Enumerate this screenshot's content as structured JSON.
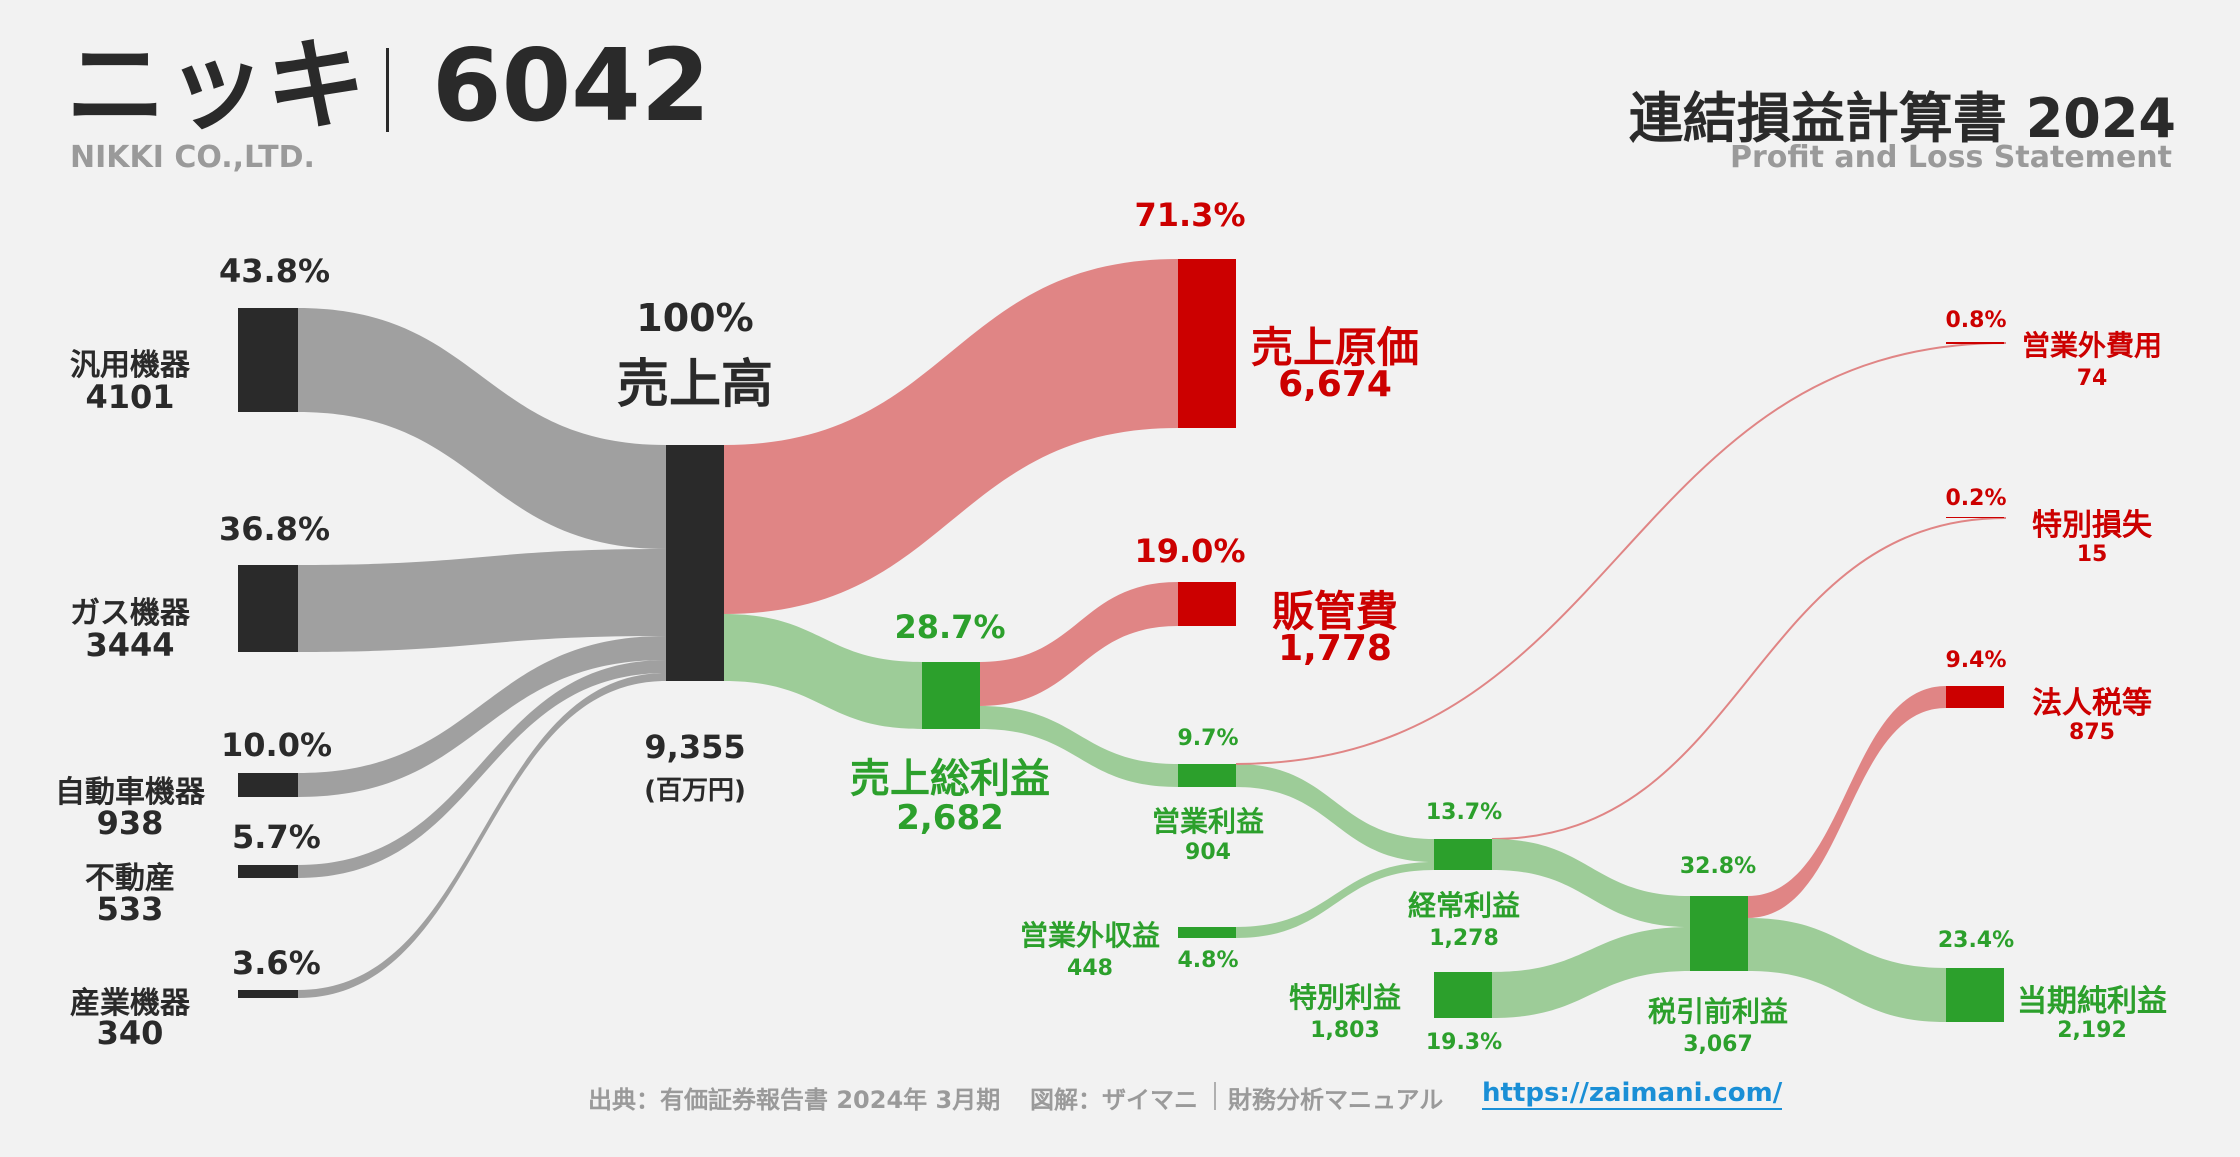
{
  "header": {
    "company": "ニッキ",
    "code": "6042",
    "company_en": "NIKKI CO.,LTD.",
    "statement_title": "連結損益計算書 2024",
    "statement_en": "Profit and Loss Statement"
  },
  "footer": {
    "source": "出典：有価証券報告書 2024年 3月期",
    "credit": "図解：ザイマニ",
    "site_name": "財務分析マニュアル",
    "url": "https://zaimani.com/"
  },
  "colors": {
    "background": "#f2f2f2",
    "dark": "#2a2a2a",
    "revenue_flow": "#a0a0a0",
    "cost_node": "#cc0000",
    "cost_flow": "#e08585",
    "profit_node": "#2ca02c",
    "profit_flow": "#9dcc98",
    "link": "#1a8fd6"
  },
  "chart_data": {
    "type": "sankey",
    "unit": "(百万円)",
    "revenue_segments": [
      {
        "name": "汎用機器",
        "value": 4101,
        "pct": "43.8%"
      },
      {
        "name": "ガス機器",
        "value": 3444,
        "pct": "36.8%"
      },
      {
        "name": "自動車機器",
        "value": 938,
        "pct": "10.0%"
      },
      {
        "name": "不動産",
        "value": 533,
        "pct": "5.7%"
      },
      {
        "name": "産業機器",
        "value": 340,
        "pct": "3.6%"
      }
    ],
    "total_revenue": {
      "name": "売上高",
      "value": "9,355",
      "pct": "100%"
    },
    "cost_of_sales": {
      "name": "売上原価",
      "value": "6,674",
      "pct": "71.3%"
    },
    "gross_profit": {
      "name": "売上総利益",
      "value": "2,682",
      "pct": "28.7%"
    },
    "sga": {
      "name": "販管費",
      "value": "1,778",
      "pct": "19.0%"
    },
    "operating_profit": {
      "name": "営業利益",
      "value": "904",
      "pct": "9.7%"
    },
    "non_operating_income": {
      "name": "営業外収益",
      "value": "448",
      "pct": "4.8%"
    },
    "non_operating_expense": {
      "name": "営業外費用",
      "value": "74",
      "pct": "0.8%"
    },
    "ordinary_profit": {
      "name": "経常利益",
      "value": "1,278",
      "pct": "13.7%"
    },
    "extraordinary_income": {
      "name": "特別利益",
      "value": "1,803",
      "pct": "19.3%"
    },
    "extraordinary_loss": {
      "name": "特別損失",
      "value": "15",
      "pct": "0.2%"
    },
    "pretax_profit": {
      "name": "税引前利益",
      "value": "3,067",
      "pct": "32.8%"
    },
    "income_taxes": {
      "name": "法人税等",
      "value": "875",
      "pct": "9.4%"
    },
    "net_income": {
      "name": "当期純利益",
      "value": "2,192",
      "pct": "23.4%"
    },
    "links": [
      {
        "from": "汎用機器",
        "to": "売上高",
        "value": 4101
      },
      {
        "from": "ガス機器",
        "to": "売上高",
        "value": 3444
      },
      {
        "from": "自動車機器",
        "to": "売上高",
        "value": 938
      },
      {
        "from": "不動産",
        "to": "売上高",
        "value": 533
      },
      {
        "from": "産業機器",
        "to": "売上高",
        "value": 340
      },
      {
        "from": "売上高",
        "to": "売上原価",
        "value": 6674
      },
      {
        "from": "売上高",
        "to": "売上総利益",
        "value": 2682
      },
      {
        "from": "売上総利益",
        "to": "販管費",
        "value": 1778
      },
      {
        "from": "売上総利益",
        "to": "営業利益",
        "value": 904
      },
      {
        "from": "営業利益",
        "to": "経常利益",
        "value": 904
      },
      {
        "from": "営業外収益",
        "to": "経常利益",
        "value": 448
      },
      {
        "from": "経常利益",
        "to": "営業外費用",
        "value": 74
      },
      {
        "from": "経常利益",
        "to": "特別損失",
        "value": 15
      },
      {
        "from": "経常利益",
        "to": "税引前利益",
        "value": 1278
      },
      {
        "from": "特別利益",
        "to": "税引前利益",
        "value": 1803
      },
      {
        "from": "税引前利益",
        "to": "法人税等",
        "value": 875
      },
      {
        "from": "税引前利益",
        "to": "当期純利益",
        "value": 2192
      }
    ]
  }
}
